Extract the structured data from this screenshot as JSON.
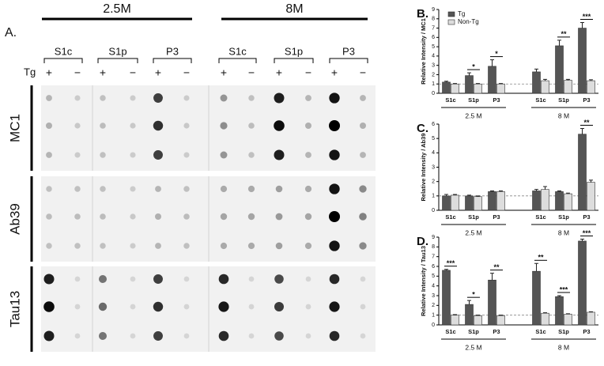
{
  "blot": {
    "label": "A.",
    "ages": [
      "2.5M",
      "8M"
    ],
    "fractions": [
      "S1c",
      "S1p",
      "P3"
    ],
    "genotype_label": "Tg",
    "genotype_signs": [
      "+",
      "−"
    ],
    "antibodies": [
      "MC1",
      "Ab39",
      "Tau13"
    ]
  },
  "chart_data": [
    {
      "type": "bar",
      "panel": "B.",
      "ylabel": "Relative Intensity / MC1",
      "categories": [
        "S1c",
        "S1p",
        "P3",
        "S1c",
        "S1p",
        "P3"
      ],
      "groups": [
        "2.5 M",
        "8 M"
      ],
      "series": [
        {
          "name": "Tg",
          "color": "#555555",
          "values": [
            1.2,
            1.9,
            2.9,
            2.3,
            5.1,
            7.0
          ],
          "errors": [
            0.1,
            0.3,
            0.7,
            0.3,
            0.6,
            0.6
          ]
        },
        {
          "name": "Non-Tg",
          "color": "#dddddd",
          "values": [
            1.0,
            1.0,
            1.0,
            1.35,
            1.4,
            1.35
          ],
          "errors": [
            0.05,
            0.05,
            0.05,
            0.15,
            0.1,
            0.1
          ]
        }
      ],
      "ylim": [
        0,
        9
      ],
      "yticks": [
        0,
        1,
        2,
        3,
        4,
        5,
        6,
        7,
        8,
        9
      ],
      "reference_line": 1,
      "legend": "top-left",
      "significance": [
        {
          "index": 1,
          "label": "*"
        },
        {
          "index": 2,
          "label": "*"
        },
        {
          "index": 4,
          "label": "**"
        },
        {
          "index": 5,
          "label": "***"
        }
      ]
    },
    {
      "type": "bar",
      "panel": "C.",
      "ylabel": "Relative Intensity / Ab39",
      "categories": [
        "S1c",
        "S1p",
        "P3",
        "S1c",
        "S1p",
        "P3"
      ],
      "groups": [
        "2.5 M",
        "8 M"
      ],
      "series": [
        {
          "name": "Tg",
          "color": "#555555",
          "values": [
            1.0,
            1.0,
            1.3,
            1.35,
            1.3,
            5.3
          ],
          "errors": [
            0.1,
            0.05,
            0.05,
            0.1,
            0.05,
            0.4
          ]
        },
        {
          "name": "Non-Tg",
          "color": "#dddddd",
          "values": [
            1.05,
            0.95,
            1.3,
            1.45,
            1.15,
            1.95
          ],
          "errors": [
            0.05,
            0.05,
            0.05,
            0.2,
            0.05,
            0.15
          ]
        }
      ],
      "ylim": [
        0,
        6
      ],
      "yticks": [
        0,
        1,
        2,
        3,
        4,
        5,
        6
      ],
      "reference_line": 1,
      "significance": [
        {
          "index": 5,
          "label": "**"
        }
      ]
    },
    {
      "type": "bar",
      "panel": "D.",
      "ylabel": "Relative Intensity / Tau13",
      "categories": [
        "S1c",
        "S1p",
        "P3",
        "S1c",
        "S1p",
        "P3"
      ],
      "groups": [
        "2.5 M",
        "8 M"
      ],
      "series": [
        {
          "name": "Tg",
          "color": "#555555",
          "values": [
            5.6,
            2.1,
            4.6,
            5.5,
            2.9,
            8.6
          ],
          "errors": [
            0.1,
            0.4,
            0.7,
            0.8,
            0.1,
            0.2
          ]
        },
        {
          "name": "Non-Tg",
          "color": "#dddddd",
          "values": [
            1.0,
            0.95,
            0.95,
            1.2,
            1.1,
            1.3
          ],
          "errors": [
            0.05,
            0.05,
            0.05,
            0.05,
            0.05,
            0.05
          ]
        }
      ],
      "ylim": [
        0,
        9
      ],
      "yticks": [
        0,
        1,
        2,
        3,
        4,
        5,
        6,
        7,
        8,
        9
      ],
      "reference_line": 1,
      "significance": [
        {
          "index": 0,
          "label": "***"
        },
        {
          "index": 1,
          "label": "*"
        },
        {
          "index": 2,
          "label": "**"
        },
        {
          "index": 3,
          "label": "**"
        },
        {
          "index": 4,
          "label": "***"
        },
        {
          "index": 5,
          "label": "***"
        }
      ]
    }
  ]
}
